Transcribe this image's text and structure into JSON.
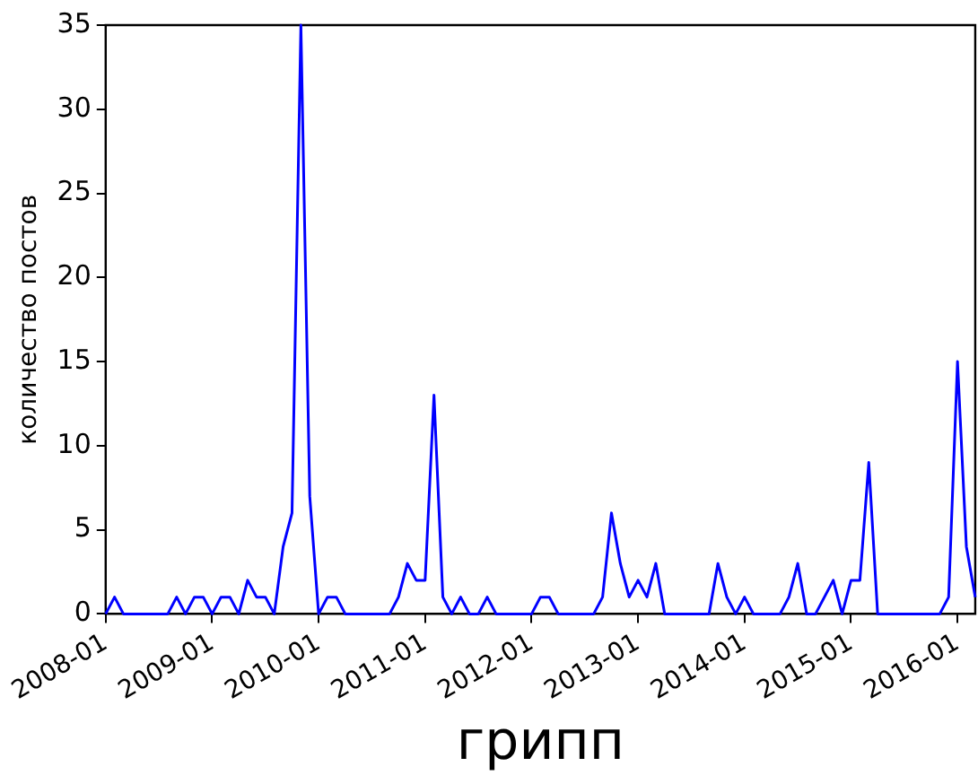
{
  "chart_data": {
    "type": "line",
    "xlabel": "грипп",
    "ylabel": "количество постов",
    "x": [
      "2008-01",
      "2008-02",
      "2008-03",
      "2008-04",
      "2008-05",
      "2008-06",
      "2008-07",
      "2008-08",
      "2008-09",
      "2008-10",
      "2008-11",
      "2008-12",
      "2009-01",
      "2009-02",
      "2009-03",
      "2009-04",
      "2009-05",
      "2009-06",
      "2009-07",
      "2009-08",
      "2009-09",
      "2009-10",
      "2009-11",
      "2009-12",
      "2010-01",
      "2010-02",
      "2010-03",
      "2010-04",
      "2010-05",
      "2010-06",
      "2010-07",
      "2010-08",
      "2010-09",
      "2010-10",
      "2010-11",
      "2010-12",
      "2011-01",
      "2011-02",
      "2011-03",
      "2011-04",
      "2011-05",
      "2011-06",
      "2011-07",
      "2011-08",
      "2011-09",
      "2011-10",
      "2011-11",
      "2011-12",
      "2012-01",
      "2012-02",
      "2012-03",
      "2012-04",
      "2012-05",
      "2012-06",
      "2012-07",
      "2012-08",
      "2012-09",
      "2012-10",
      "2012-11",
      "2012-12",
      "2013-01",
      "2013-02",
      "2013-03",
      "2013-04",
      "2013-05",
      "2013-06",
      "2013-07",
      "2013-08",
      "2013-09",
      "2013-10",
      "2013-11",
      "2013-12",
      "2014-01",
      "2014-02",
      "2014-03",
      "2014-04",
      "2014-05",
      "2014-06",
      "2014-07",
      "2014-08",
      "2014-09",
      "2014-10",
      "2014-11",
      "2014-12",
      "2015-01",
      "2015-02",
      "2015-03",
      "2015-04",
      "2015-05",
      "2015-06",
      "2015-07",
      "2015-08",
      "2015-09",
      "2015-10",
      "2015-11",
      "2015-12",
      "2016-01",
      "2016-02",
      "2016-03"
    ],
    "series": [
      {
        "color": "#0000ff",
        "values": [
          0,
          1,
          0,
          0,
          0,
          0,
          0,
          0,
          1,
          0,
          1,
          1,
          0,
          1,
          1,
          0,
          2,
          1,
          1,
          0,
          4,
          6,
          35,
          7,
          0,
          1,
          1,
          0,
          0,
          0,
          0,
          0,
          0,
          1,
          3,
          2,
          2,
          13,
          1,
          0,
          1,
          0,
          0,
          1,
          0,
          0,
          0,
          0,
          0,
          1,
          1,
          0,
          0,
          0,
          0,
          0,
          1,
          6,
          3,
          1,
          2,
          1,
          3,
          0,
          0,
          0,
          0,
          0,
          0,
          3,
          1,
          0,
          1,
          0,
          0,
          0,
          0,
          1,
          3,
          0,
          0,
          1,
          2,
          0,
          2,
          2,
          9,
          0,
          0,
          0,
          0,
          0,
          0,
          0,
          0,
          1,
          15,
          4,
          1
        ]
      }
    ],
    "xlim": [
      "2008-01",
      "2016-03"
    ],
    "xticks": [
      "2008-01",
      "2009-01",
      "2010-01",
      "2011-01",
      "2012-01",
      "2013-01",
      "2014-01",
      "2015-01",
      "2016-01"
    ],
    "ylim": [
      0,
      35
    ],
    "yticks": [
      0,
      5,
      10,
      15,
      20,
      25,
      30,
      35
    ],
    "grid": false,
    "legend": false,
    "marker": "none",
    "line_style": "solid"
  }
}
